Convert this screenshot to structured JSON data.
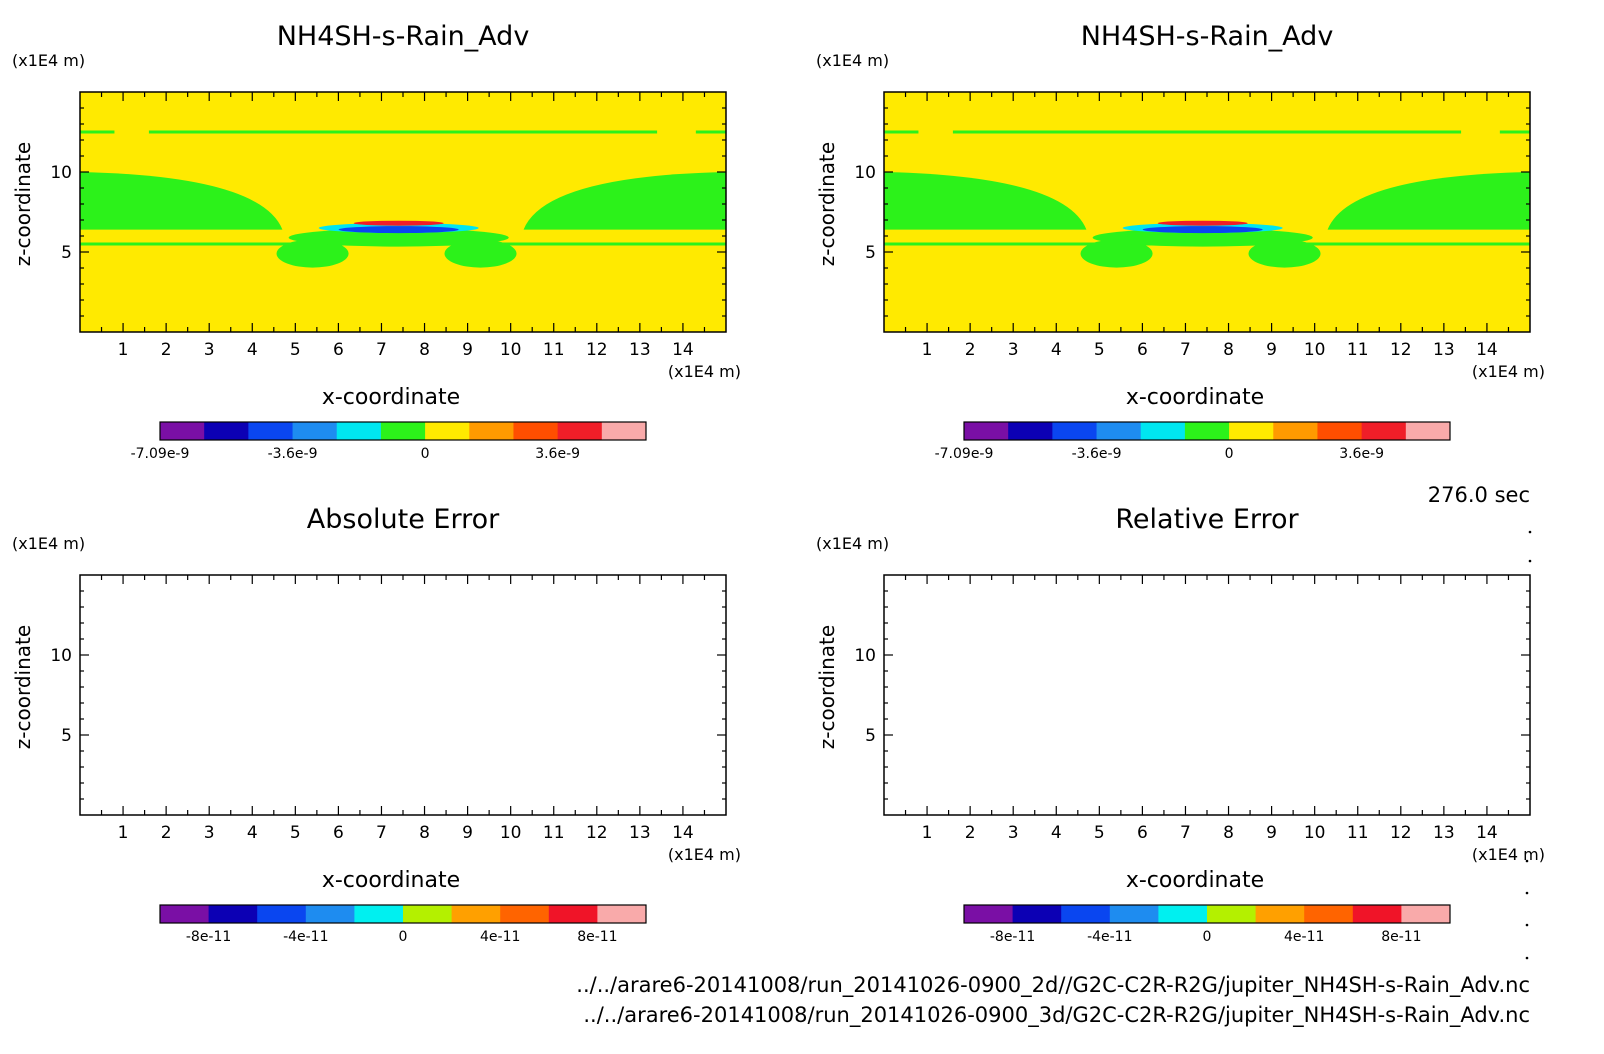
{
  "time_label": "276.0 sec",
  "footer": {
    "path_2d": "../../arare6-20141008/run_20141026-0900_2d//G2C-C2R-R2G/jupiter_NH4SH-s-Rain_Adv.nc",
    "path_3d": "../../arare6-20141008/run_20141026-0900_3d/G2C-C2R-R2G/jupiter_NH4SH-s-Rain_Adv.nc"
  },
  "colors": {
    "field_background": "#ffea00",
    "field_green": "#2cf21a",
    "frame": "#000000"
  },
  "chart_data": [
    {
      "type": "heatmap",
      "title": "NH4SH-s-Rain_Adv",
      "xlabel": "x-coordinate",
      "ylabel": "z-coordinate",
      "x_unit": "(x1E4 m)",
      "y_unit": "(x1E4 m)",
      "xlim": [
        0,
        15
      ],
      "ylim": [
        0,
        15
      ],
      "x_ticks": [
        1,
        2,
        3,
        4,
        5,
        6,
        7,
        8,
        9,
        10,
        11,
        12,
        13,
        14
      ],
      "y_ticks": [
        5,
        10
      ],
      "has_field": true,
      "colorbar": {
        "colors": [
          "#7a0fa5",
          "#0c00b4",
          "#0a46f0",
          "#1e8cf0",
          "#00e6f0",
          "#2cf21a",
          "#ffea00",
          "#ff9a00",
          "#ff4e00",
          "#f01e28",
          "#f9aaaa"
        ],
        "tick_labels": [
          {
            "label": "-7.09e-9",
            "index": 0
          },
          {
            "label": "-3.6e-9",
            "index": 3
          },
          {
            "label": "0",
            "index": 6
          },
          {
            "label": "3.6e-9",
            "index": 9
          }
        ]
      }
    },
    {
      "type": "heatmap",
      "title": "NH4SH-s-Rain_Adv",
      "xlabel": "x-coordinate",
      "ylabel": "z-coordinate",
      "x_unit": "(x1E4 m)",
      "y_unit": "(x1E4 m)",
      "xlim": [
        0,
        15
      ],
      "ylim": [
        0,
        15
      ],
      "x_ticks": [
        1,
        2,
        3,
        4,
        5,
        6,
        7,
        8,
        9,
        10,
        11,
        12,
        13,
        14
      ],
      "y_ticks": [
        5,
        10
      ],
      "has_field": true,
      "colorbar": {
        "colors": [
          "#7a0fa5",
          "#0c00b4",
          "#0a46f0",
          "#1e8cf0",
          "#00e6f0",
          "#2cf21a",
          "#ffea00",
          "#ff9a00",
          "#ff4e00",
          "#f01e28",
          "#f9aaaa"
        ],
        "tick_labels": [
          {
            "label": "-7.09e-9",
            "index": 0
          },
          {
            "label": "-3.6e-9",
            "index": 3
          },
          {
            "label": "0",
            "index": 6
          },
          {
            "label": "3.6e-9",
            "index": 9
          }
        ]
      }
    },
    {
      "type": "heatmap",
      "title": "Absolute Error",
      "xlabel": "x-coordinate",
      "ylabel": "z-coordinate",
      "x_unit": "(x1E4 m)",
      "y_unit": "(x1E4 m)",
      "xlim": [
        0,
        15
      ],
      "ylim": [
        0,
        15
      ],
      "x_ticks": [
        1,
        2,
        3,
        4,
        5,
        6,
        7,
        8,
        9,
        10,
        11,
        12,
        13,
        14
      ],
      "y_ticks": [
        5,
        10
      ],
      "has_field": false,
      "colorbar": {
        "colors": [
          "#7a0fa5",
          "#0c00b4",
          "#0a46f0",
          "#1e8cf0",
          "#00f0f0",
          "#b4f000",
          "#ffa000",
          "#ff6400",
          "#f01428",
          "#f9aaaa"
        ],
        "tick_labels": [
          {
            "label": "-8e-11",
            "index": 1
          },
          {
            "label": "-4e-11",
            "index": 3
          },
          {
            "label": "0",
            "index": 5
          },
          {
            "label": "4e-11",
            "index": 7
          },
          {
            "label": "8e-11",
            "index": 9
          }
        ]
      }
    },
    {
      "type": "heatmap",
      "title": "Relative Error",
      "xlabel": "x-coordinate",
      "ylabel": "z-coordinate",
      "x_unit": "(x1E4 m)",
      "y_unit": "(x1E4 m)",
      "xlim": [
        0,
        15
      ],
      "ylim": [
        0,
        15
      ],
      "x_ticks": [
        1,
        2,
        3,
        4,
        5,
        6,
        7,
        8,
        9,
        10,
        11,
        12,
        13,
        14
      ],
      "y_ticks": [
        5,
        10
      ],
      "has_field": false,
      "colorbar": {
        "colors": [
          "#7a0fa5",
          "#0c00b4",
          "#0a46f0",
          "#1e8cf0",
          "#00f0f0",
          "#b4f000",
          "#ffa000",
          "#ff6400",
          "#f01428",
          "#f9aaaa"
        ],
        "tick_labels": [
          {
            "label": "-8e-11",
            "index": 1
          },
          {
            "label": "-4e-11",
            "index": 3
          },
          {
            "label": "0",
            "index": 5
          },
          {
            "label": "4e-11",
            "index": 7
          },
          {
            "label": "8e-11",
            "index": 9
          }
        ]
      }
    }
  ]
}
